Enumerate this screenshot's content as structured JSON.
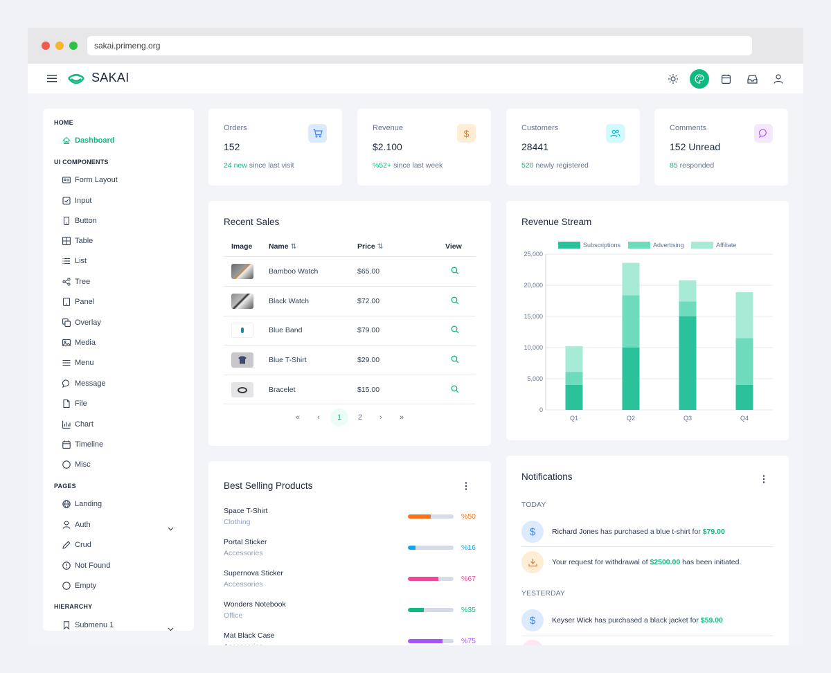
{
  "browser": {
    "url": "sakai.primeng.org"
  },
  "topbar": {
    "brand": "SAKAI"
  },
  "sidebar": {
    "sections": [
      {
        "title": "HOME"
      },
      {
        "title": "UI COMPONENTS"
      },
      {
        "title": "PAGES"
      },
      {
        "title": "HIERARCHY"
      }
    ],
    "items": [
      {
        "label": "Dashboard"
      },
      {
        "label": "Form Layout"
      },
      {
        "label": "Input"
      },
      {
        "label": "Button"
      },
      {
        "label": "Table"
      },
      {
        "label": "List"
      },
      {
        "label": "Tree"
      },
      {
        "label": "Panel"
      },
      {
        "label": "Overlay"
      },
      {
        "label": "Media"
      },
      {
        "label": "Menu"
      },
      {
        "label": "Message"
      },
      {
        "label": "File"
      },
      {
        "label": "Chart"
      },
      {
        "label": "Timeline"
      },
      {
        "label": "Misc"
      },
      {
        "label": "Landing"
      },
      {
        "label": "Auth"
      },
      {
        "label": "Crud"
      },
      {
        "label": "Not Found"
      },
      {
        "label": "Empty"
      },
      {
        "label": "Submenu 1"
      }
    ]
  },
  "stats": [
    {
      "label": "Orders",
      "value": "152",
      "highlight": "24 new",
      "sub": " since last visit",
      "color": "#3b82f6",
      "bg": "#dbeafe"
    },
    {
      "label": "Revenue",
      "value": "$2.100",
      "highlight": "%52+",
      "sub": " since last week",
      "color": "#f97316",
      "bg": "#ffedd5"
    },
    {
      "label": "Customers",
      "value": "28441",
      "highlight": "520",
      "sub": " newly registered",
      "color": "#06b6d4",
      "bg": "#cffafe"
    },
    {
      "label": "Comments",
      "value": "152 Unread",
      "highlight": "85",
      "sub": " responded",
      "color": "#a855f7",
      "bg": "#f3e8ff"
    }
  ],
  "recent_sales": {
    "title": "Recent Sales",
    "headers": {
      "image": "Image",
      "name": "Name",
      "price": "Price",
      "view": "View"
    },
    "rows": [
      {
        "name": "Bamboo Watch",
        "price": "$65.00"
      },
      {
        "name": "Black Watch",
        "price": "$72.00"
      },
      {
        "name": "Blue Band",
        "price": "$79.00"
      },
      {
        "name": "Blue T-Shirt",
        "price": "$29.00"
      },
      {
        "name": "Bracelet",
        "price": "$15.00"
      }
    ],
    "pagination": {
      "pages": [
        "1",
        "2"
      ],
      "current": "1"
    }
  },
  "revenue_stream": {
    "title": "Revenue Stream"
  },
  "chart_data": {
    "type": "bar",
    "stacked": true,
    "categories": [
      "Q1",
      "Q2",
      "Q3",
      "Q4"
    ],
    "series": [
      {
        "name": "Subscriptions",
        "values": [
          4000,
          10000,
          15000,
          4000
        ],
        "color": "#2bc29b"
      },
      {
        "name": "Advertising",
        "values": [
          2100,
          8400,
          2400,
          7500
        ],
        "color": "#6edbbd"
      },
      {
        "name": "Affiliate",
        "values": [
          4100,
          5200,
          3400,
          7400
        ],
        "color": "#a7ead5"
      }
    ],
    "yticks": [
      "25,000",
      "20,000",
      "15,000",
      "10,000",
      "5,000",
      "0"
    ],
    "ylim": [
      0,
      25000
    ],
    "grid": true,
    "legend": "top"
  },
  "best_selling": {
    "title": "Best Selling Products",
    "items": [
      {
        "name": "Space T-Shirt",
        "category": "Clothing",
        "pct": 50,
        "label": "%50",
        "color": "#f97316"
      },
      {
        "name": "Portal Sticker",
        "category": "Accessories",
        "pct": 16,
        "label": "%16",
        "color": "#0ea5e9"
      },
      {
        "name": "Supernova Sticker",
        "category": "Accessories",
        "pct": 67,
        "label": "%67",
        "color": "#ec4899"
      },
      {
        "name": "Wonders Notebook",
        "category": "Office",
        "pct": 35,
        "label": "%35",
        "color": "#10b981"
      },
      {
        "name": "Mat Black Case",
        "category": "Accessories",
        "pct": 75,
        "label": "%75",
        "color": "#a855f7"
      }
    ]
  },
  "notifications": {
    "title": "Notifications",
    "today_label": "TODAY",
    "yesterday_label": "YESTERDAY",
    "items": [
      {
        "name": "Richard Jones",
        "text": " has purchased a blue t-shirt for ",
        "amount": "$79.00"
      },
      {
        "pre": "Your request for withdrawal of ",
        "amount": "$2500.00",
        "post": " has been initiated."
      },
      {
        "name": "Keyser Wick",
        "text": " has purchased a black jacket for ",
        "amount": "$59.00"
      }
    ]
  }
}
